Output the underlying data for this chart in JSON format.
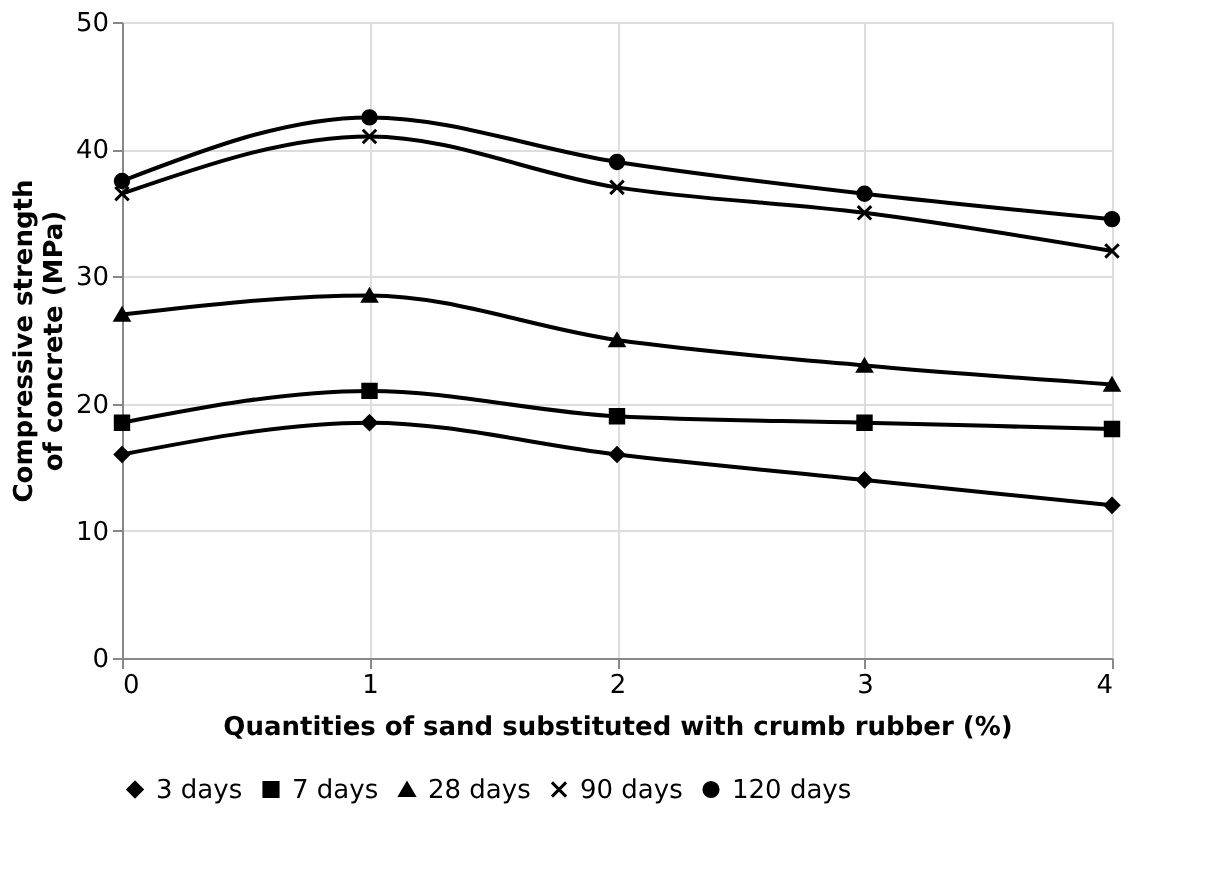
{
  "chart_data": {
    "type": "line",
    "xlabel": "Quantities of sand substituted with crumb rubber (%)",
    "ylabel": "Compressive strength of concrete (MPa)",
    "x": [
      0,
      1,
      2,
      3,
      4
    ],
    "xlim": [
      0,
      4
    ],
    "xticks": [
      0,
      1,
      2,
      3,
      4
    ],
    "ylim": [
      0,
      50
    ],
    "yticks": [
      0,
      10,
      20,
      30,
      40,
      50
    ],
    "grid": true,
    "legend": "bottom",
    "series": [
      {
        "name": "3 days",
        "color": "#000000",
        "marker": "diamond",
        "values": [
          16,
          18.5,
          16,
          14,
          12
        ]
      },
      {
        "name": "7 days",
        "color": "#000000",
        "marker": "square",
        "values": [
          18.5,
          21,
          19,
          18.5,
          18
        ]
      },
      {
        "name": "28 days",
        "color": "#000000",
        "marker": "triangle",
        "values": [
          27,
          28.5,
          25,
          23,
          21.5
        ]
      },
      {
        "name": "90 days",
        "color": "#000000",
        "marker": "cross",
        "values": [
          36.5,
          41,
          37,
          35,
          32
        ]
      },
      {
        "name": "120 days",
        "color": "#000000",
        "marker": "circle",
        "values": [
          37.5,
          42.5,
          39,
          36.5,
          34.5
        ]
      }
    ]
  }
}
